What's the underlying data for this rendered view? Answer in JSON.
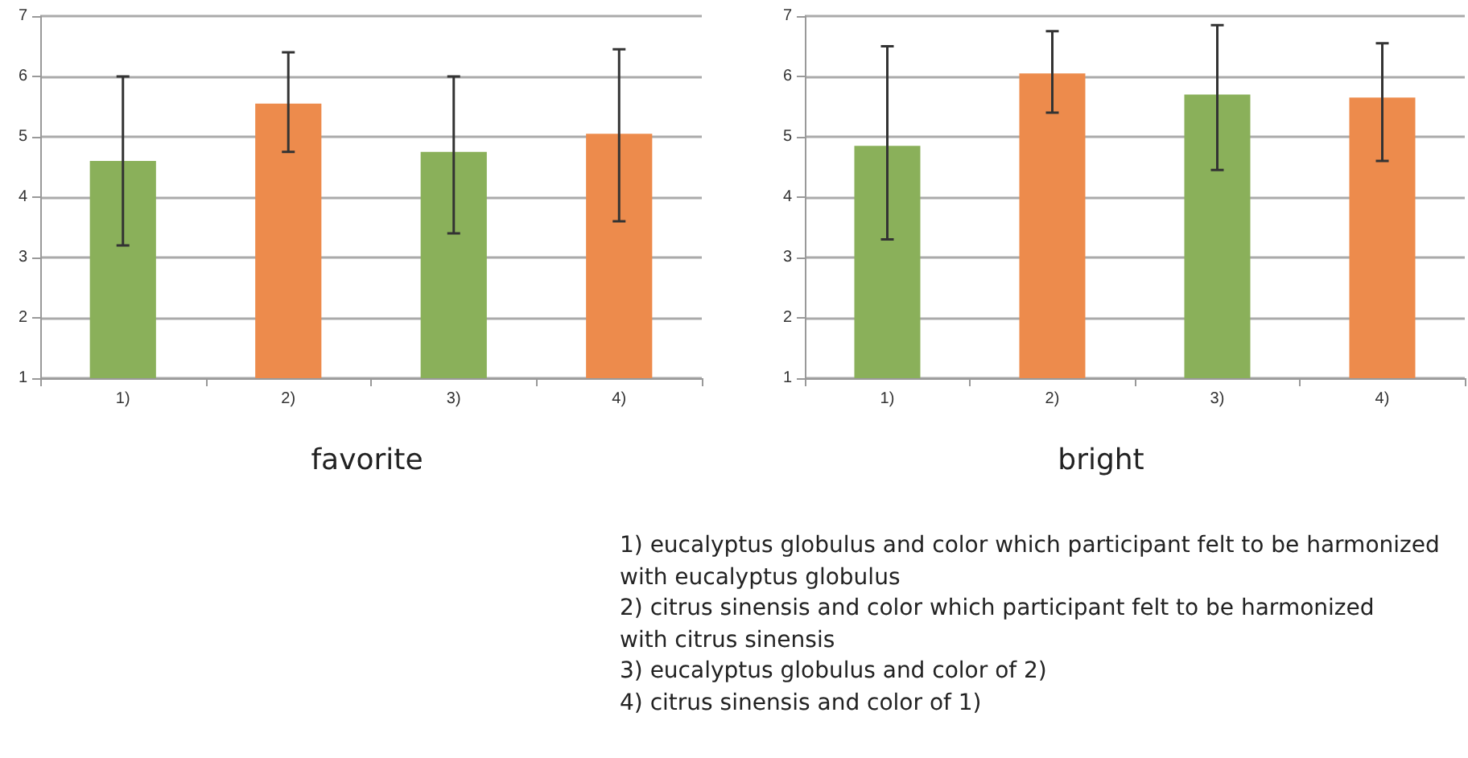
{
  "chart_data": [
    {
      "type": "bar",
      "title": "favorite",
      "categories": [
        "1)",
        "2)",
        "3)",
        "4)"
      ],
      "values": [
        4.6,
        5.55,
        4.75,
        5.05
      ],
      "colors": [
        "#8ab05a",
        "#ed8b4c",
        "#8ab05a",
        "#ed8b4c"
      ],
      "errors": [
        [
          3.2,
          6.0
        ],
        [
          4.75,
          6.4
        ],
        [
          3.4,
          6.0
        ],
        [
          3.6,
          6.45
        ]
      ],
      "ylim": [
        1,
        7
      ],
      "yticks": [
        1,
        2,
        3,
        4,
        5,
        6,
        7
      ],
      "grid": "y"
    },
    {
      "type": "bar",
      "title": "bright",
      "categories": [
        "1)",
        "2)",
        "3)",
        "4)"
      ],
      "values": [
        4.85,
        6.05,
        5.7,
        5.65
      ],
      "colors": [
        "#8ab05a",
        "#ed8b4c",
        "#8ab05a",
        "#ed8b4c"
      ],
      "errors": [
        [
          3.3,
          6.5
        ],
        [
          5.4,
          6.75
        ],
        [
          4.45,
          6.85
        ],
        [
          4.6,
          6.55
        ]
      ],
      "ylim": [
        1,
        7
      ],
      "yticks": [
        1,
        2,
        3,
        4,
        5,
        6,
        7
      ],
      "grid": "y",
      "annotations": [
        "1)  eucalyptus globulus and color which participant felt to be harmonized",
        "with eucalyptus globulus",
        "2) citrus sinensis and color which participant felt to be harmonized",
        "with citrus sinensis",
        "3) eucalyptus globulus and color of 2)",
        "4) citrus sinensis and color of 1)"
      ]
    }
  ]
}
